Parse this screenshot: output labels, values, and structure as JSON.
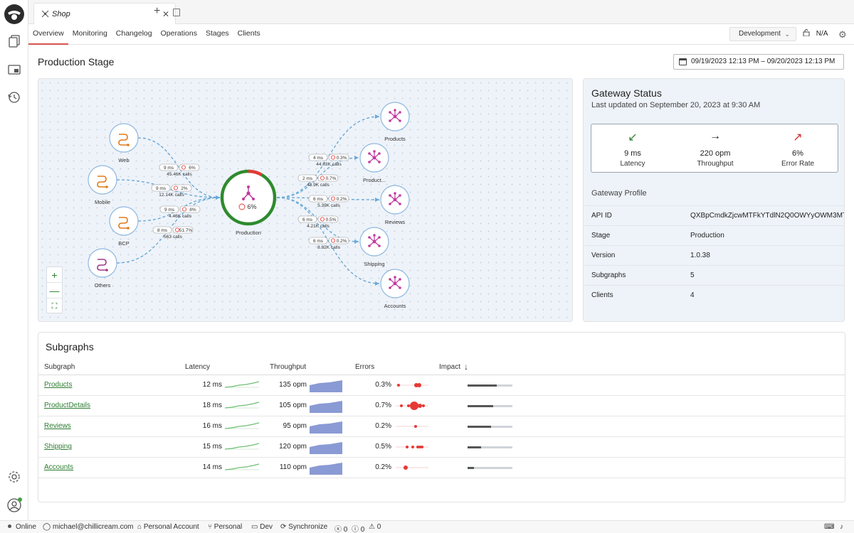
{
  "tab": {
    "label": "Shop"
  },
  "nav": {
    "tabs": [
      "Overview",
      "Monitoring",
      "Changelog",
      "Operations",
      "Stages",
      "Clients"
    ],
    "active": "Overview"
  },
  "environment": {
    "selected": "Development"
  },
  "lock_status": "N/A",
  "page_title": "Production Stage",
  "date_range": "09/19/2023 12:13 PM – 09/20/2023 12:13 PM",
  "graph": {
    "center": {
      "label": "Production",
      "error_rate": "6%"
    },
    "clients": [
      {
        "name": "Web",
        "latency": "9 ms",
        "error": "6%",
        "calls": "45.46K calls"
      },
      {
        "name": "Mobile",
        "latency": "9 ms",
        "error": "2%",
        "calls": "12.14K calls"
      },
      {
        "name": "BCP",
        "latency": "9 ms",
        "error": "8%",
        "calls": "4.46K calls"
      },
      {
        "name": "Others",
        "latency": "8 ms",
        "error": "51.7%",
        "calls": "563 calls"
      }
    ],
    "subgraphs": [
      {
        "name": "Products",
        "latency": "4 ms",
        "error": "0.3%",
        "calls": "44.03K calls"
      },
      {
        "name": "Product...",
        "latency": "2 ms",
        "error": "0.7%",
        "calls": "43.9K calls"
      },
      {
        "name": "Reviews",
        "latency": "6 ms",
        "error": "0.2%",
        "calls": "5.39K calls"
      },
      {
        "name": "Shipping",
        "latency": "6 ms",
        "error": "0.5%",
        "calls": "4.21K calls"
      },
      {
        "name": "Accounts",
        "latency": "6 ms",
        "error": "0.2%",
        "calls": "8.82K calls"
      }
    ]
  },
  "gateway_status": {
    "title": "Gateway Status",
    "updated": "Last updated on September 20, 2023 at 9:30 AM",
    "metrics": [
      {
        "value": "9 ms",
        "label": "Latency",
        "icon": "arrow-down-left-icon",
        "color": "#2e7d32"
      },
      {
        "value": "220 opm",
        "label": "Throughput",
        "icon": "arrow-right-icon",
        "color": "#222222"
      },
      {
        "value": "6%",
        "label": "Error Rate",
        "icon": "arrow-up-right-icon",
        "color": "#d32f2f"
      }
    ],
    "profile_title": "Gateway Profile",
    "profile": [
      {
        "key": "API ID",
        "value": "QXBpCmdkZjcwMTFkYTdlN2Q0OWYyOWM3MT"
      },
      {
        "key": "Stage",
        "value": "Production"
      },
      {
        "key": "Version",
        "value": "1.0.38"
      },
      {
        "key": "Subgraphs",
        "value": "5"
      },
      {
        "key": "Clients",
        "value": "4"
      }
    ]
  },
  "subgraphs_table": {
    "title": "Subgraphs",
    "headers": [
      "Subgraph",
      "Latency",
      "Throughput",
      "Errors",
      "Impact"
    ],
    "rows": [
      {
        "name": "Products",
        "latency": "12 ms",
        "throughput": "135 opm",
        "errors": "0.3%",
        "impact": 0.65
      },
      {
        "name": "ProductDetails",
        "latency": "18 ms",
        "throughput": "105 opm",
        "errors": "0.7%",
        "impact": 0.57
      },
      {
        "name": "Reviews",
        "latency": "16 ms",
        "throughput": "95 opm",
        "errors": "0.2%",
        "impact": 0.52
      },
      {
        "name": "Shipping",
        "latency": "15 ms",
        "throughput": "120 opm",
        "errors": "0.5%",
        "impact": 0.3
      },
      {
        "name": "Accounts",
        "latency": "14 ms",
        "throughput": "110 opm",
        "errors": "0.2%",
        "impact": 0.15
      }
    ]
  },
  "statusbar": {
    "connection": "Online",
    "email": "michael@chillicream.com",
    "account": "Personal Account",
    "branch": "Personal",
    "env": "Dev",
    "sync": "Synchronize",
    "errors": "0",
    "infos": "0",
    "warnings": "0"
  }
}
